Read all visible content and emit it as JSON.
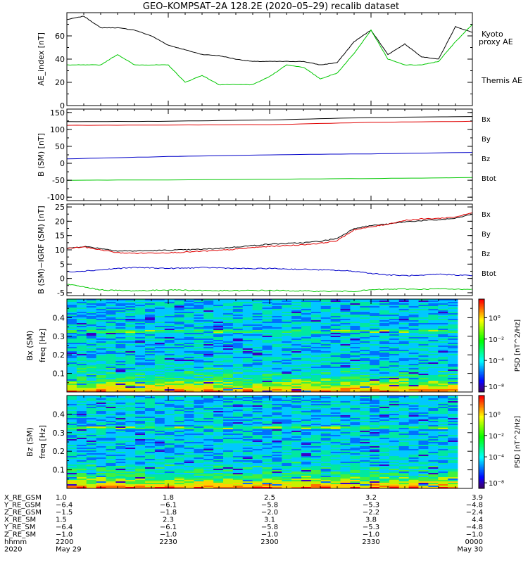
{
  "title": "GEO–KOMPSAT–2A 128.2E (2020–05–29) recalib dataset",
  "colors": {
    "black": "#000000",
    "red": "#e00000",
    "blue": "#0000c8",
    "green": "#00c800"
  },
  "chart_data": [
    {
      "type": "line",
      "ylabel": "AE_index [nT]",
      "ylim": [
        0,
        80
      ],
      "yticks": [
        0,
        20,
        40,
        60
      ],
      "xlim": [
        "22:00",
        "24:00"
      ],
      "grid": false,
      "legend": [
        "Kyoto proxy AE",
        "Themis AE"
      ],
      "legend_colors": [
        "#00c800",
        "#000000"
      ],
      "series": [
        {
          "name": "Themis AE",
          "color": "#000000",
          "x": [
            "22:00",
            "22:05",
            "22:10",
            "22:15",
            "22:20",
            "22:25",
            "22:30",
            "22:35",
            "22:40",
            "22:45",
            "22:50",
            "22:55",
            "23:00",
            "23:05",
            "23:10",
            "23:15",
            "23:20",
            "23:25",
            "23:30",
            "23:35",
            "23:40",
            "23:45",
            "23:50",
            "23:55",
            "24:00"
          ],
          "values": [
            74,
            77,
            67,
            67,
            65,
            60,
            52,
            48,
            44,
            43,
            40,
            38,
            38,
            38,
            38,
            35,
            37,
            55,
            65,
            44,
            53,
            42,
            40,
            68,
            63
          ]
        },
        {
          "name": "Kyoto proxy AE",
          "color": "#00c800",
          "x": [
            "22:00",
            "22:05",
            "22:10",
            "22:15",
            "22:20",
            "22:25",
            "22:30",
            "22:35",
            "22:40",
            "22:45",
            "22:50",
            "22:55",
            "23:00",
            "23:05",
            "23:10",
            "23:15",
            "23:20",
            "23:25",
            "23:30",
            "23:35",
            "23:40",
            "23:45",
            "23:50",
            "23:55",
            "24:00"
          ],
          "values": [
            35,
            35,
            35,
            44,
            35,
            35,
            35,
            20,
            26,
            18,
            18,
            18,
            25,
            35,
            33,
            23,
            28,
            45,
            65,
            40,
            35,
            35,
            38,
            55,
            70
          ]
        }
      ]
    },
    {
      "type": "line",
      "ylabel": "B (SM) [nT]",
      "ylim": [
        -110,
        160
      ],
      "yticks": [
        -100,
        -50,
        0,
        50,
        100,
        150
      ],
      "xlim": [
        "22:00",
        "24:00"
      ],
      "legend": [
        "Bx",
        "By",
        "Bz",
        "Btot"
      ],
      "legend_colors": [
        "#0000c8",
        "#00c800",
        "#e00000",
        "#000000"
      ],
      "series": [
        {
          "name": "Btot",
          "color": "#000000",
          "x": [
            "22:00",
            "22:30",
            "23:00",
            "23:30",
            "24:00"
          ],
          "values": [
            123,
            124,
            128,
            135,
            138
          ]
        },
        {
          "name": "Bz",
          "color": "#e00000",
          "x": [
            "22:00",
            "22:30",
            "23:00",
            "23:30",
            "24:00"
          ],
          "values": [
            112,
            113,
            114,
            121,
            124
          ]
        },
        {
          "name": "Bx",
          "color": "#0000c8",
          "x": [
            "22:00",
            "22:30",
            "23:00",
            "23:30",
            "24:00"
          ],
          "values": [
            13,
            20,
            25,
            28,
            32
          ]
        },
        {
          "name": "By",
          "color": "#00c800",
          "x": [
            "22:00",
            "22:30",
            "23:00",
            "23:30",
            "24:00"
          ],
          "values": [
            -50,
            -49,
            -47,
            -45,
            -42
          ]
        }
      ]
    },
    {
      "type": "line",
      "ylabel": "B (SM)−IGRF (SM) [nT]",
      "ylim": [
        -6,
        26
      ],
      "yticks": [
        -5,
        0,
        5,
        10,
        15,
        20,
        25
      ],
      "xlim": [
        "22:00",
        "24:00"
      ],
      "legend": [
        "Bx",
        "By",
        "Bz",
        "Btot"
      ],
      "legend_colors": [
        "#0000c8",
        "#00c800",
        "#e00000",
        "#000000"
      ],
      "series": [
        {
          "name": "Btot",
          "color": "#000000",
          "x": [
            "22:00",
            "22:05",
            "22:10",
            "22:15",
            "22:20",
            "22:25",
            "22:30",
            "22:35",
            "22:40",
            "22:45",
            "22:50",
            "22:55",
            "23:00",
            "23:05",
            "23:10",
            "23:15",
            "23:20",
            "23:25",
            "23:30",
            "23:35",
            "23:40",
            "23:45",
            "23:50",
            "23:55",
            "24:00"
          ],
          "values": [
            10.5,
            11.2,
            10.5,
            9.6,
            9.6,
            9.7,
            9.9,
            10,
            10.2,
            10.5,
            11,
            11.5,
            12,
            12.2,
            12.5,
            13,
            14,
            17.5,
            18.5,
            19,
            19.8,
            20.2,
            20.5,
            21,
            22.5
          ]
        },
        {
          "name": "Bz",
          "color": "#e00000",
          "x": [
            "22:00",
            "22:05",
            "22:10",
            "22:15",
            "22:20",
            "22:25",
            "22:30",
            "22:35",
            "22:40",
            "22:45",
            "22:50",
            "22:55",
            "23:00",
            "23:05",
            "23:10",
            "23:15",
            "23:20",
            "23:25",
            "23:30",
            "23:35",
            "23:40",
            "23:45",
            "23:50",
            "23:55",
            "24:00"
          ],
          "values": [
            10.5,
            11,
            10,
            9,
            8.8,
            8.9,
            9,
            9.2,
            9.5,
            9.8,
            10.2,
            10.8,
            11.2,
            11.5,
            11.8,
            12.3,
            13.2,
            17,
            18,
            19,
            20.3,
            20.8,
            21,
            21.5,
            23
          ]
        },
        {
          "name": "Bx",
          "color": "#0000c8",
          "x": [
            "22:00",
            "22:05",
            "22:10",
            "22:15",
            "22:20",
            "22:25",
            "22:30",
            "22:35",
            "22:40",
            "22:45",
            "22:50",
            "22:55",
            "23:00",
            "23:05",
            "23:10",
            "23:15",
            "23:20",
            "23:25",
            "23:30",
            "23:35",
            "23:40",
            "23:45",
            "23:50",
            "23:55",
            "24:00"
          ],
          "values": [
            2.3,
            2.6,
            3,
            3.5,
            3.8,
            3.7,
            3.5,
            3.6,
            3.8,
            3.7,
            3.5,
            3.4,
            3.5,
            3.3,
            3.2,
            3,
            2.8,
            2.5,
            1.8,
            1.2,
            1,
            1,
            1.5,
            1.2,
            1
          ]
        },
        {
          "name": "By",
          "color": "#00c800",
          "x": [
            "22:00",
            "22:05",
            "22:10",
            "22:15",
            "22:20",
            "22:25",
            "22:30",
            "22:35",
            "22:40",
            "22:45",
            "22:50",
            "22:55",
            "23:00",
            "23:05",
            "23:10",
            "23:15",
            "23:20",
            "23:25",
            "23:30",
            "23:35",
            "23:40",
            "23:45",
            "23:50",
            "23:55",
            "24:00"
          ],
          "values": [
            -2,
            -3,
            -4,
            -4.2,
            -4.3,
            -4.2,
            -4,
            -4.1,
            -4.2,
            -4.3,
            -4.3,
            -4.2,
            -4.2,
            -4.3,
            -4.4,
            -4.5,
            -4.5,
            -4.5,
            -4,
            -3.8,
            -3.7,
            -3.8,
            -3.6,
            -3.8,
            -3.7
          ]
        }
      ]
    },
    {
      "type": "heatmap",
      "title": "Bx (SM)",
      "ylabel": "freq [Hz]",
      "ylim": [
        0,
        0.5
      ],
      "yticks": [
        0.1,
        0.2,
        0.3,
        0.4
      ],
      "xlim": [
        "22:00",
        "24:00"
      ],
      "colorbar": {
        "label": "PSD [nT^2/Hz]",
        "scale": "log",
        "tick_labels": [
          "10⁻⁸",
          "10⁻⁴",
          "10⁻²",
          "10⁰"
        ]
      }
    },
    {
      "type": "heatmap",
      "title": "Bz (SM)",
      "ylabel": "freq [Hz]",
      "ylim": [
        0,
        0.5
      ],
      "yticks": [
        0.1,
        0.2,
        0.3,
        0.4
      ],
      "xlim": [
        "22:00",
        "24:00"
      ],
      "colorbar": {
        "label": "PSD [nT^2/Hz]",
        "scale": "log",
        "tick_labels": [
          "10⁻⁸",
          "10⁻⁴",
          "10⁻²",
          "10⁰"
        ]
      }
    }
  ],
  "ephemeris": {
    "row_labels": [
      "X_RE_GSM",
      "Y_RE_GSM",
      "Z_RE_GSM",
      "X_RE_SM",
      "Y_RE_SM",
      "Z_RE_SM",
      "hhmm",
      "2020"
    ],
    "columns": [
      [
        "1.0",
        "−6.4",
        "−1.5",
        "1.5",
        "−6.4",
        "−1.0",
        "2200",
        "May 29"
      ],
      [
        "1.8",
        "−6.1",
        "−1.8",
        "2.3",
        "−6.1",
        "−1.0",
        "2230",
        ""
      ],
      [
        "2.5",
        "−5.8",
        "−2.0",
        "3.1",
        "−5.8",
        "−1.0",
        "2300",
        ""
      ],
      [
        "3.2",
        "−5.3",
        "−2.2",
        "3.8",
        "−5.3",
        "−1.0",
        "2330",
        ""
      ],
      [
        "3.9",
        "−4.8",
        "−2.4",
        "4.4",
        "−4.8",
        "−1.0",
        "0000",
        "May 30"
      ]
    ]
  }
}
